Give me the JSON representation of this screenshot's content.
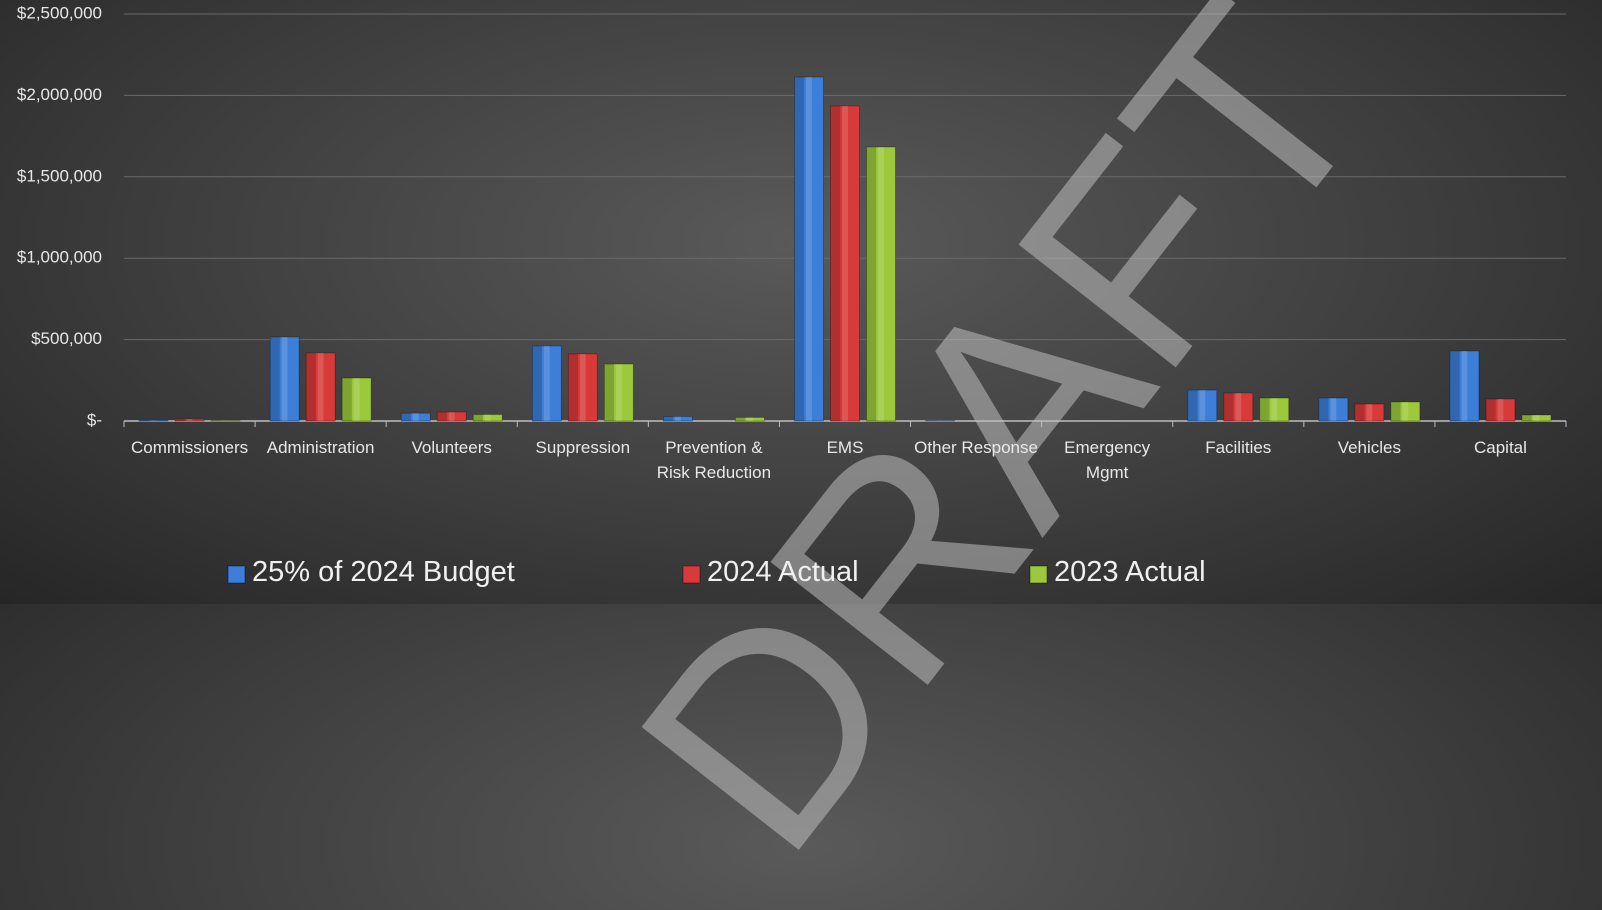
{
  "chart_data": {
    "type": "bar",
    "categories": [
      "Commissioners",
      "Administration",
      "Volunteers",
      "Suppression",
      "Prevention & Risk Reduction",
      "EMS",
      "Other Response",
      "Emergency Mgmt",
      "Facilities",
      "Vehicles",
      "Capital"
    ],
    "series": [
      {
        "name": "25% of 2024 Budget",
        "color": "#3c7ed8",
        "values": [
          5000,
          516000,
          48000,
          461000,
          28000,
          2113000,
          2000,
          0,
          190000,
          141000,
          430000
        ]
      },
      {
        "name": "2024 Actual",
        "color": "#d83a3a",
        "values": [
          12000,
          418000,
          55000,
          412000,
          0,
          1935000,
          0,
          0,
          172000,
          104000,
          135000
        ]
      },
      {
        "name": "2023 Actual",
        "color": "#9cc83c",
        "values": [
          2000,
          264000,
          40000,
          350000,
          22000,
          1683000,
          0,
          0,
          141000,
          117000,
          37000
        ]
      }
    ],
    "ylim": [
      0,
      2500000
    ],
    "yticks": [
      {
        "value": 0,
        "label": "$-"
      },
      {
        "value": 500000,
        "label": "$500,000"
      },
      {
        "value": 1000000,
        "label": "$1,000,000"
      },
      {
        "value": 1500000,
        "label": "$1,500,000"
      },
      {
        "value": 2000000,
        "label": "$2,000,000"
      },
      {
        "value": 2500000,
        "label": "$2,500,000"
      }
    ],
    "grid": true,
    "legend": "bottom",
    "watermark": "DRAFT"
  }
}
